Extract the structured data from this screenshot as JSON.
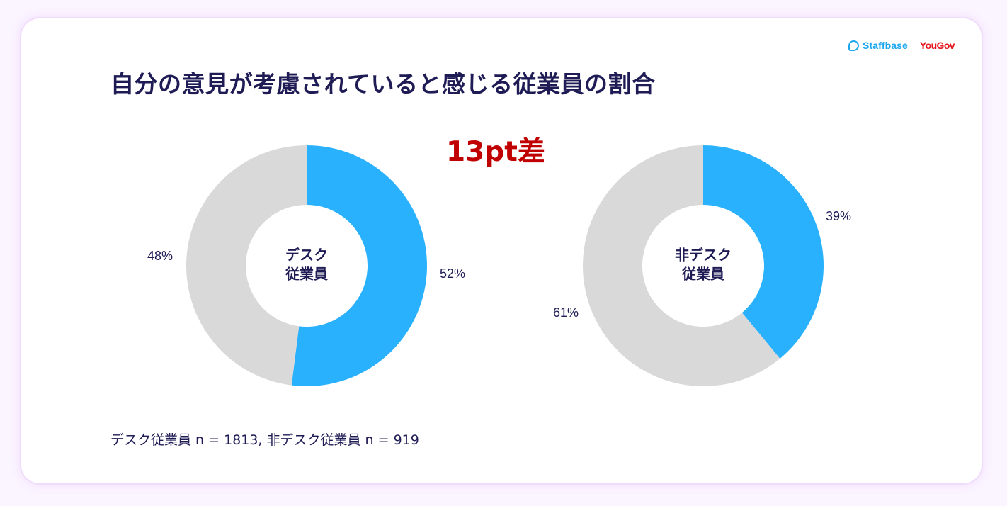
{
  "chart_data": {
    "type": "donut",
    "title": "自分の意見が考慮されていると感じる従業員の割合",
    "annotation": "13pt差",
    "footnote": "デスク従業員 n = 1813, 非デスク従業員 n = 919",
    "colors": {
      "positive": "#29b1fd",
      "rest": "#d9d9d9"
    },
    "charts": [
      {
        "label_line1": "デスク",
        "label_line2": "従業員",
        "slices": [
          {
            "value": 52,
            "label": "52%",
            "color": "#29b1fd"
          },
          {
            "value": 48,
            "label": "48%",
            "color": "#d9d9d9"
          }
        ]
      },
      {
        "label_line1": "非デスク",
        "label_line2": "従業員",
        "slices": [
          {
            "value": 39,
            "label": "39%",
            "color": "#29b1fd"
          },
          {
            "value": 61,
            "label": "61%",
            "color": "#d9d9d9"
          }
        ]
      }
    ]
  },
  "logos": {
    "left": "Staffbase",
    "right": "YouGov"
  }
}
